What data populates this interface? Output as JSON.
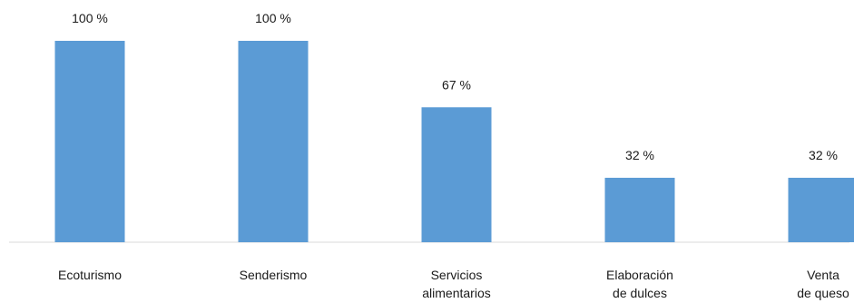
{
  "chart_data": {
    "type": "bar",
    "categories": [
      [
        "Ecoturismo"
      ],
      [
        "Senderismo"
      ],
      [
        "Servicios",
        "alimentarios"
      ],
      [
        "Elaboración",
        "de dulces"
      ],
      [
        "Venta",
        "de queso"
      ]
    ],
    "values": [
      100,
      100,
      67,
      32,
      32
    ],
    "value_labels": [
      "100 %",
      "100 %",
      "67 %",
      "32 %",
      "32 %"
    ],
    "unit": "%",
    "ylim": [
      0,
      100
    ],
    "grid": false,
    "legend": "none",
    "colors": {
      "bar": "#5b9bd5",
      "axis": "#d9d9d9",
      "text": "#1a1a1a"
    }
  }
}
